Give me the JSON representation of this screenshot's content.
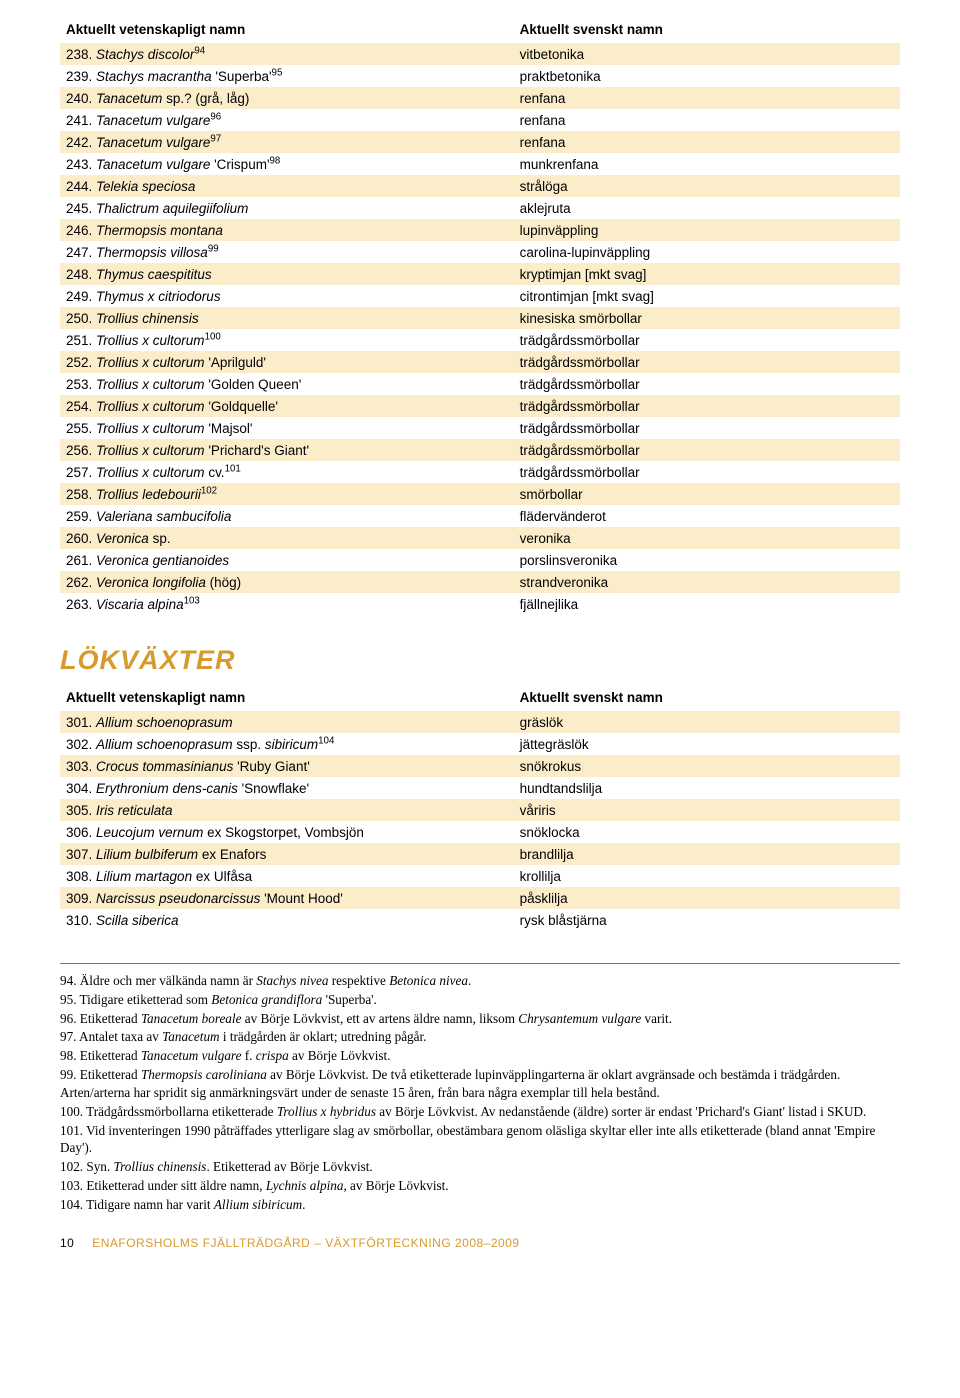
{
  "colors": {
    "stripe_odd": "#fbedca",
    "stripe_even": "#ffffff",
    "accent": "#d69a2d",
    "text": "#000000",
    "rule": "#777777"
  },
  "typography": {
    "body_font": "Myriad Pro / Segoe UI / Arial, sans-serif",
    "serif_font": "Adobe Garamond Pro / Garamond / Georgia, serif",
    "table_fontsize_pt": 10,
    "section_title_fontsize_pt": 20,
    "footnote_fontsize_pt": 10
  },
  "table1": {
    "headers": [
      "Aktuellt vetenskapligt namn",
      "Aktuellt svenskt namn"
    ],
    "rows": [
      {
        "left_html": "<span class='num'>238. </span>Stachys discolor<sup>94</sup>",
        "right": "vitbetonika"
      },
      {
        "left_html": "<span class='num'>239. </span>Stachys macrantha <span class='roman'>'Superba'</span><sup>95</sup>",
        "right": "praktbetonika"
      },
      {
        "left_html": "<span class='num'>240. </span>Tanacetum <span class='roman'>sp.? (grå, låg)</span>",
        "right": "renfana"
      },
      {
        "left_html": "<span class='num'>241. </span>Tanacetum vulgare<sup>96</sup>",
        "right": "renfana"
      },
      {
        "left_html": "<span class='num'>242. </span>Tanacetum vulgare<sup>97</sup>",
        "right": "renfana"
      },
      {
        "left_html": "<span class='num'>243. </span>Tanacetum vulgare <span class='roman'>'Crispum'</span><sup>98</sup>",
        "right": "munkrenfana"
      },
      {
        "left_html": "<span class='num'>244. </span>Telekia speciosa",
        "right": "strålöga"
      },
      {
        "left_html": "<span class='num'>245. </span>Thalictrum aquilegiifolium",
        "right": "aklejruta"
      },
      {
        "left_html": "<span class='num'>246. </span>Thermopsis montana",
        "right": "lupinväppling"
      },
      {
        "left_html": "<span class='num'>247. </span>Thermopsis villosa<sup>99</sup>",
        "right": "carolina-lupinväppling"
      },
      {
        "left_html": "<span class='num'>248. </span>Thymus caespititus",
        "right": "kryptimjan [mkt svag]"
      },
      {
        "left_html": "<span class='num'>249. </span>Thymus x citriodorus",
        "right": "citrontimjan [mkt svag]"
      },
      {
        "left_html": "<span class='num'>250. </span>Trollius chinensis",
        "right": "kinesiska smörbollar"
      },
      {
        "left_html": "<span class='num'>251. </span>Trollius x cultorum<sup>100</sup>",
        "right": "trädgårdssmörbollar"
      },
      {
        "left_html": "<span class='num'>252. </span>Trollius x cultorum <span class='roman'>'Aprilguld'</span>",
        "right": "trädgårdssmörbollar"
      },
      {
        "left_html": "<span class='num'>253. </span>Trollius x cultorum <span class='roman'>'Golden Queen'</span>",
        "right": "trädgårdssmörbollar"
      },
      {
        "left_html": "<span class='num'>254. </span>Trollius x cultorum <span class='roman'>'Goldquelle'</span>",
        "right": "trädgårdssmörbollar"
      },
      {
        "left_html": "<span class='num'>255. </span>Trollius x cultorum <span class='roman'>'Majsol'</span>",
        "right": "trädgårdssmörbollar"
      },
      {
        "left_html": "<span class='num'>256. </span>Trollius x cultorum <span class='roman'>'Prichard's Giant'</span>",
        "right": "trädgårdssmörbollar"
      },
      {
        "left_html": "<span class='num'>257. </span>Trollius x cultorum <span class='roman'>cv.</span><sup>101</sup>",
        "right": "trädgårdssmörbollar"
      },
      {
        "left_html": "<span class='num'>258. </span>Trollius ledebourii<sup>102</sup>",
        "right": "smörbollar"
      },
      {
        "left_html": "<span class='num'>259. </span>Valeriana sambucifolia",
        "right": "flädervänderot"
      },
      {
        "left_html": "<span class='num'>260. </span>Veronica <span class='roman'>sp.</span>",
        "right": "veronika"
      },
      {
        "left_html": "<span class='num'>261. </span>Veronica gentianoides",
        "right": "porslinsveronika"
      },
      {
        "left_html": "<span class='num'>262. </span>Veronica longifolia <span class='roman'>(hög)</span>",
        "right": "strandveronika"
      },
      {
        "left_html": "<span class='num'>263. </span>Viscaria alpina<sup>103</sup>",
        "right": "fjällnejlika"
      }
    ]
  },
  "section_title": "LÖKVÄXTER",
  "table2": {
    "headers": [
      "Aktuellt vetenskapligt namn",
      "Aktuellt svenskt namn"
    ],
    "rows": [
      {
        "left_html": "<span class='num'>301. </span>Allium schoenoprasum",
        "right": "gräslök"
      },
      {
        "left_html": "<span class='num'>302. </span>Allium schoenoprasum <span class='roman'>ssp.</span> sibiricum<sup>104</sup>",
        "right": "jättegräslök"
      },
      {
        "left_html": "<span class='num'>303. </span>Crocus tommasinianus <span class='roman'>'Ruby Giant'</span>",
        "right": "snökrokus"
      },
      {
        "left_html": "<span class='num'>304. </span>Erythronium dens-canis <span class='roman'>'Snowflake'</span>",
        "right": "hundtandslilja"
      },
      {
        "left_html": "<span class='num'>305. </span>Iris reticulata",
        "right": "våriris"
      },
      {
        "left_html": "<span class='num'>306. </span>Leucojum vernum <span class='roman'>ex Skogstorpet, Vombsjön</span>",
        "right": "snöklocka"
      },
      {
        "left_html": "<span class='num'>307. </span>Lilium bulbiferum <span class='roman'>ex Enafors</span>",
        "right": "brandlilja"
      },
      {
        "left_html": "<span class='num'>308. </span>Lilium martagon <span class='roman'>ex Ulfåsa</span>",
        "right": "krollilja"
      },
      {
        "left_html": "<span class='num'>309. </span>Narcissus pseudonarcissus <span class='roman'>'Mount Hood'</span>",
        "right": "påsklilja"
      },
      {
        "left_html": "<span class='num'>310. </span>Scilla siberica",
        "right": "rysk blåstjärna"
      }
    ]
  },
  "footnotes": [
    "94. Äldre och mer välkända namn är <span class='it'>Stachys nivea</span> respektive <span class='it'>Betonica nivea</span>.",
    "95. Tidigare etiketterad som <span class='it'>Betonica grandiflora</span> 'Superba'.",
    "96. Etiketterad <span class='it'>Tanacetum boreale</span> av Börje Lövkvist, ett av artens äldre namn, liksom <span class='it'>Chrysantemum vulgare</span> varit.",
    "97. Antalet taxa av <span class='it'>Tanacetum</span> i trädgården är oklart; utredning pågår.",
    "98. Etiketterad <span class='it'>Tanacetum vulgare</span> f. <span class='it'>crispa</span> av Börje Lövkvist.",
    "99. Etiketterad <span class='it'>Thermopsis caroliniana</span> av Börje Lövkvist. De två etiketterade lupinväpplingarterna är oklart avgränsade och bestämda i trädgården. Arten/arterna har spridit sig anmärkningsvärt under de senaste 15 åren, från bara några exemplar till hela bestånd.",
    "100. Trädgårdssmörbollarna etiketterade <span class='it'>Trollius x hybridus</span> av Börje Lövkvist. Av nedanstående (äldre) sorter är endast 'Prichard's Giant' listad i SKUD.",
    "101. Vid inventeringen 1990 påträffades ytterligare slag av smörbollar, obestämbara genom oläsliga skyltar eller inte alls etiketterade (bland annat 'Empire Day').",
    "102. Syn. <span class='it'>Trollius chinensis</span>. Etiketterad av Börje Lövkvist.",
    "103. Etiketterad under sitt äldre namn, <span class='it'>Lychnis alpina</span>, av Börje Lövkvist.",
    "104. Tidigare namn har varit <span class='it'>Allium sibiricum</span>."
  ],
  "footer": {
    "page_number": "10",
    "title": "ENAFORSHOLMS FJÄLLTRÄDGÅRD – VÄXTFÖRTECKNING 2008–2009"
  }
}
